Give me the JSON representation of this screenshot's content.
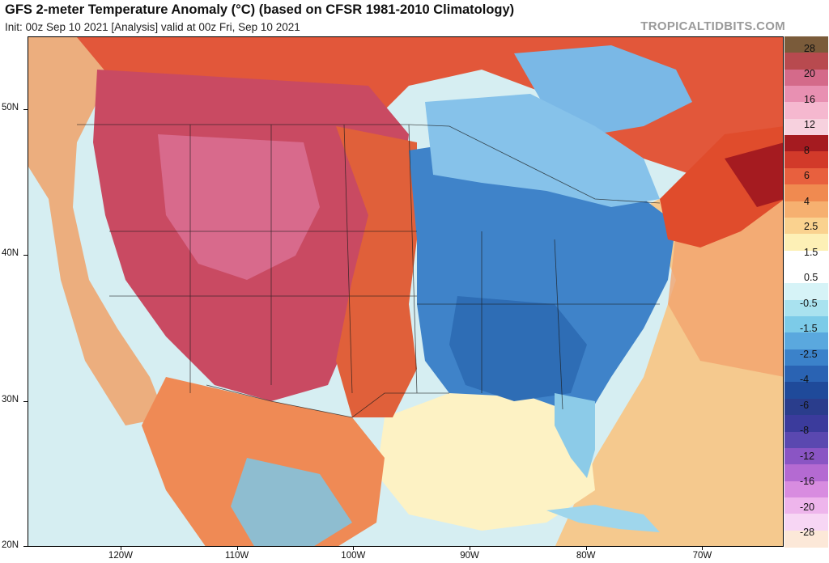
{
  "header": {
    "title": "GFS 2-meter Temperature Anomaly (°C) (based on CFSR 1981-2010 Climatology)",
    "subtitle": "Init: 00z Sep 10 2021   [Analysis]   valid at 00z Fri, Sep 10 2021",
    "brand": "TROPICALTIDBITS.COM"
  },
  "map": {
    "lat_labels": [
      "50N",
      "40N",
      "30N",
      "20N"
    ],
    "lon_labels": [
      "120W",
      "110W",
      "100W",
      "90W",
      "80W",
      "70W"
    ],
    "lat_values": [
      50,
      40,
      30,
      20
    ],
    "lon_values": [
      -120,
      -110,
      -100,
      -90,
      -80,
      -70
    ],
    "extent": {
      "lon_min": -128,
      "lon_max": -63,
      "lat_min": 20,
      "lat_max": 55
    },
    "regions": [
      {
        "name": "pacific-ocean-anomaly",
        "color": "#cfe8ef"
      },
      {
        "name": "mountain-west-warm-anomaly",
        "color": "#c94a62"
      },
      {
        "name": "great-basin-strong-warm-anomaly",
        "color": "#d86a8c"
      },
      {
        "name": "plains-warm-anomaly",
        "color": "#e0603a"
      },
      {
        "name": "eastern-us-cold-anomaly",
        "color": "#3f83c9"
      },
      {
        "name": "great-lakes-cool-anomaly",
        "color": "#86c2ea"
      },
      {
        "name": "southeast-cold-anomaly",
        "color": "#2e6db5"
      },
      {
        "name": "atlantic-warm-anomaly",
        "color": "#f5c98e"
      },
      {
        "name": "new-england-warm-anomaly",
        "color": "#e04c2c"
      },
      {
        "name": "canada-north-warm-anomaly",
        "color": "#e2573a"
      },
      {
        "name": "gulf-of-mexico-anomaly",
        "color": "#fdf2c4"
      },
      {
        "name": "mexico-mixed-anomaly",
        "color": "#ef8a55"
      }
    ]
  },
  "colorbar": {
    "labels": [
      "28",
      "20",
      "16",
      "12",
      "8",
      "6",
      "4",
      "2.5",
      "1.5",
      "0.5",
      "-0.5",
      "-1.5",
      "-2.5",
      "-4",
      "-6",
      "-8",
      "-12",
      "-16",
      "-20",
      "-28"
    ],
    "colors": [
      "#7a5b3a",
      "#b84a4f",
      "#d46a8a",
      "#e890b2",
      "#f5b8cf",
      "#f7d1de",
      "#a51b20",
      "#d23a2a",
      "#e8603e",
      "#f08a50",
      "#f6b070",
      "#fad28f",
      "#fdf0b6",
      "#ffffff",
      "#ffffff",
      "#d6f3f7",
      "#a9e2ef",
      "#7ccbe8",
      "#5aa8de",
      "#3b82ca",
      "#2a63b3",
      "#1f4a9a",
      "#2a3d8c",
      "#3b3b9c",
      "#5a48b0",
      "#8a55c4",
      "#b46ad2",
      "#d88ce0",
      "#eeb5ec",
      "#f7d6f4",
      "#fce8d8"
    ]
  }
}
